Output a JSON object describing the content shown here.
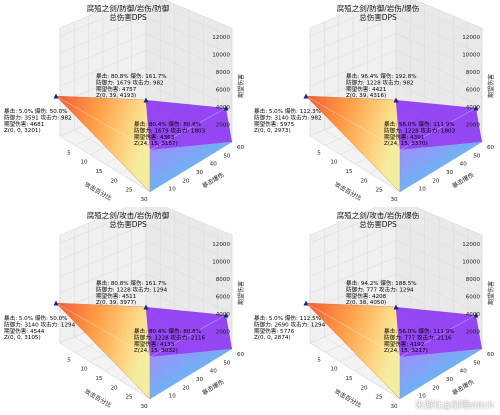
{
  "chart_data": [
    {
      "type": "surface3d",
      "title": "腐殖之剑/防御/岩伤/防御",
      "subtitle": "总伤害DPS",
      "xlabel": "攻击百分比",
      "ylabel": "暴击爆伤",
      "zlabel": "期望伤害",
      "x_ticks": [
        "0",
        "5",
        "10",
        "15",
        "20",
        "25",
        "30"
      ],
      "y_ticks": [
        "0",
        "10",
        "20",
        "30",
        "40",
        "50",
        "60"
      ],
      "z_ticks": [
        "2000",
        "4000",
        "6000",
        "8000",
        "10000",
        "12000"
      ],
      "xlim": [
        0,
        30
      ],
      "ylim": [
        0,
        60
      ],
      "zlim": [
        0,
        13000
      ],
      "annotations": [
        {
          "lines": [
            "暴击: 80.8%  爆伤: 161.7%",
            "防御力: 1679  攻击力: 982",
            "期望伤害: 4757",
            "Z(0, 39, 4193)"
          ]
        },
        {
          "lines": [
            "暴击: 5.0%   爆伤: 50.0%",
            "防御力: 3591  攻击力: 982",
            "期望伤害: 4681",
            "Z(0, 0, 3201)"
          ]
        },
        {
          "lines": [
            "暴击: 80.4%  爆伤: 80.8%",
            "防御力: 1679  攻击力: 1803",
            "期望伤害: 4363",
            "Z(24, 15, 3157)"
          ]
        }
      ]
    },
    {
      "type": "surface3d",
      "title": "腐殖之剑/防御/岩伤/爆伤",
      "subtitle": "总伤害DPS",
      "xlabel": "攻击百分比",
      "ylabel": "暴击爆伤",
      "zlabel": "期望伤害",
      "x_ticks": [
        "0",
        "5",
        "10",
        "15",
        "20",
        "25",
        "30"
      ],
      "y_ticks": [
        "0",
        "10",
        "20",
        "30",
        "40",
        "50",
        "60"
      ],
      "z_ticks": [
        "2000",
        "4000",
        "6000",
        "8000",
        "10000",
        "12000"
      ],
      "xlim": [
        0,
        30
      ],
      "ylim": [
        0,
        60
      ],
      "zlim": [
        0,
        13000
      ],
      "annotations": [
        {
          "lines": [
            "暴击: 96.4%  爆伤: 192.8%",
            "防御力: 1228  攻击力: 982",
            "期望伤害: 4421",
            "Z(0, 39, 4316)"
          ]
        },
        {
          "lines": [
            "暴击: 5.0%   爆伤: 112.3%",
            "防御力: 3140  攻击力: 982",
            "期望伤害: 5975",
            "Z(0, 0, 2973)"
          ]
        },
        {
          "lines": [
            "暴击: 56.0%  爆伤: 111.9%",
            "防御力: 1228  攻击力: 1803",
            "期望伤害: 4391",
            "Z(24, 15, 3370)"
          ]
        }
      ]
    },
    {
      "type": "surface3d",
      "title": "腐殖之剑/攻击/岩伤/防御",
      "subtitle": "总伤害DPS",
      "xlabel": "攻击百分比",
      "ylabel": "暴击爆伤",
      "zlabel": "期望伤害",
      "x_ticks": [
        "0",
        "5",
        "10",
        "15",
        "20",
        "25",
        "30"
      ],
      "y_ticks": [
        "0",
        "10",
        "20",
        "30",
        "40",
        "50",
        "60"
      ],
      "z_ticks": [
        "2000",
        "4000",
        "6000",
        "8000",
        "10000",
        "12000"
      ],
      "xlim": [
        0,
        30
      ],
      "ylim": [
        0,
        60
      ],
      "zlim": [
        0,
        13000
      ],
      "annotations": [
        {
          "lines": [
            "暴击: 80.8%  爆伤: 161.7%",
            "防御力: 1228  攻击力: 1294",
            "期望伤害: 4511",
            "Z(0, 39, 3977)"
          ]
        },
        {
          "lines": [
            "暴击: 5.0%   爆伤: 50.0%",
            "防御力: 3140  攻击力: 1294",
            "期望伤害: 4544",
            "Z(0, 0, 3105)"
          ]
        },
        {
          "lines": [
            "暴击: 80.4%  爆伤: 80.8%",
            "防御力: 1228  攻击力: 2116",
            "期望伤害: 4133",
            "Z(24, 15, 3032)"
          ]
        }
      ]
    },
    {
      "type": "surface3d",
      "title": "腐殖之剑/攻击/岩伤/爆伤",
      "subtitle": "总伤害DPS",
      "xlabel": "攻击百分比",
      "ylabel": "暴击爆伤",
      "zlabel": "期望伤害",
      "x_ticks": [
        "0",
        "5",
        "10",
        "15",
        "20",
        "25",
        "30"
      ],
      "y_ticks": [
        "0",
        "10",
        "20",
        "30",
        "40",
        "50",
        "60"
      ],
      "z_ticks": [
        "2000",
        "4000",
        "6000",
        "8000",
        "10000",
        "12000"
      ],
      "xlim": [
        0,
        30
      ],
      "ylim": [
        0,
        60
      ],
      "zlim": [
        0,
        13000
      ],
      "annotations": [
        {
          "lines": [
            "暴击: 94.2%  爆伤: 188.5%",
            "防御力: 777   攻击力: 1294",
            "期望伤害: 4208",
            "Z(0, 38, 4050)"
          ]
        },
        {
          "lines": [
            "暴击: 5.0%   爆伤: 112.5%",
            "防御力: 2690  攻击力: 1294",
            "期望伤害: 5776",
            "Z(0, 0, 2874)"
          ]
        },
        {
          "lines": [
            "暴击: 56.0%  爆伤: 111.9%",
            "防御力: 777   攻击力: 2116",
            "期望伤害: 4192",
            "Z(24, 15, 3217)"
          ]
        }
      ]
    }
  ],
  "watermark": "米游社@剑嘀stitch"
}
